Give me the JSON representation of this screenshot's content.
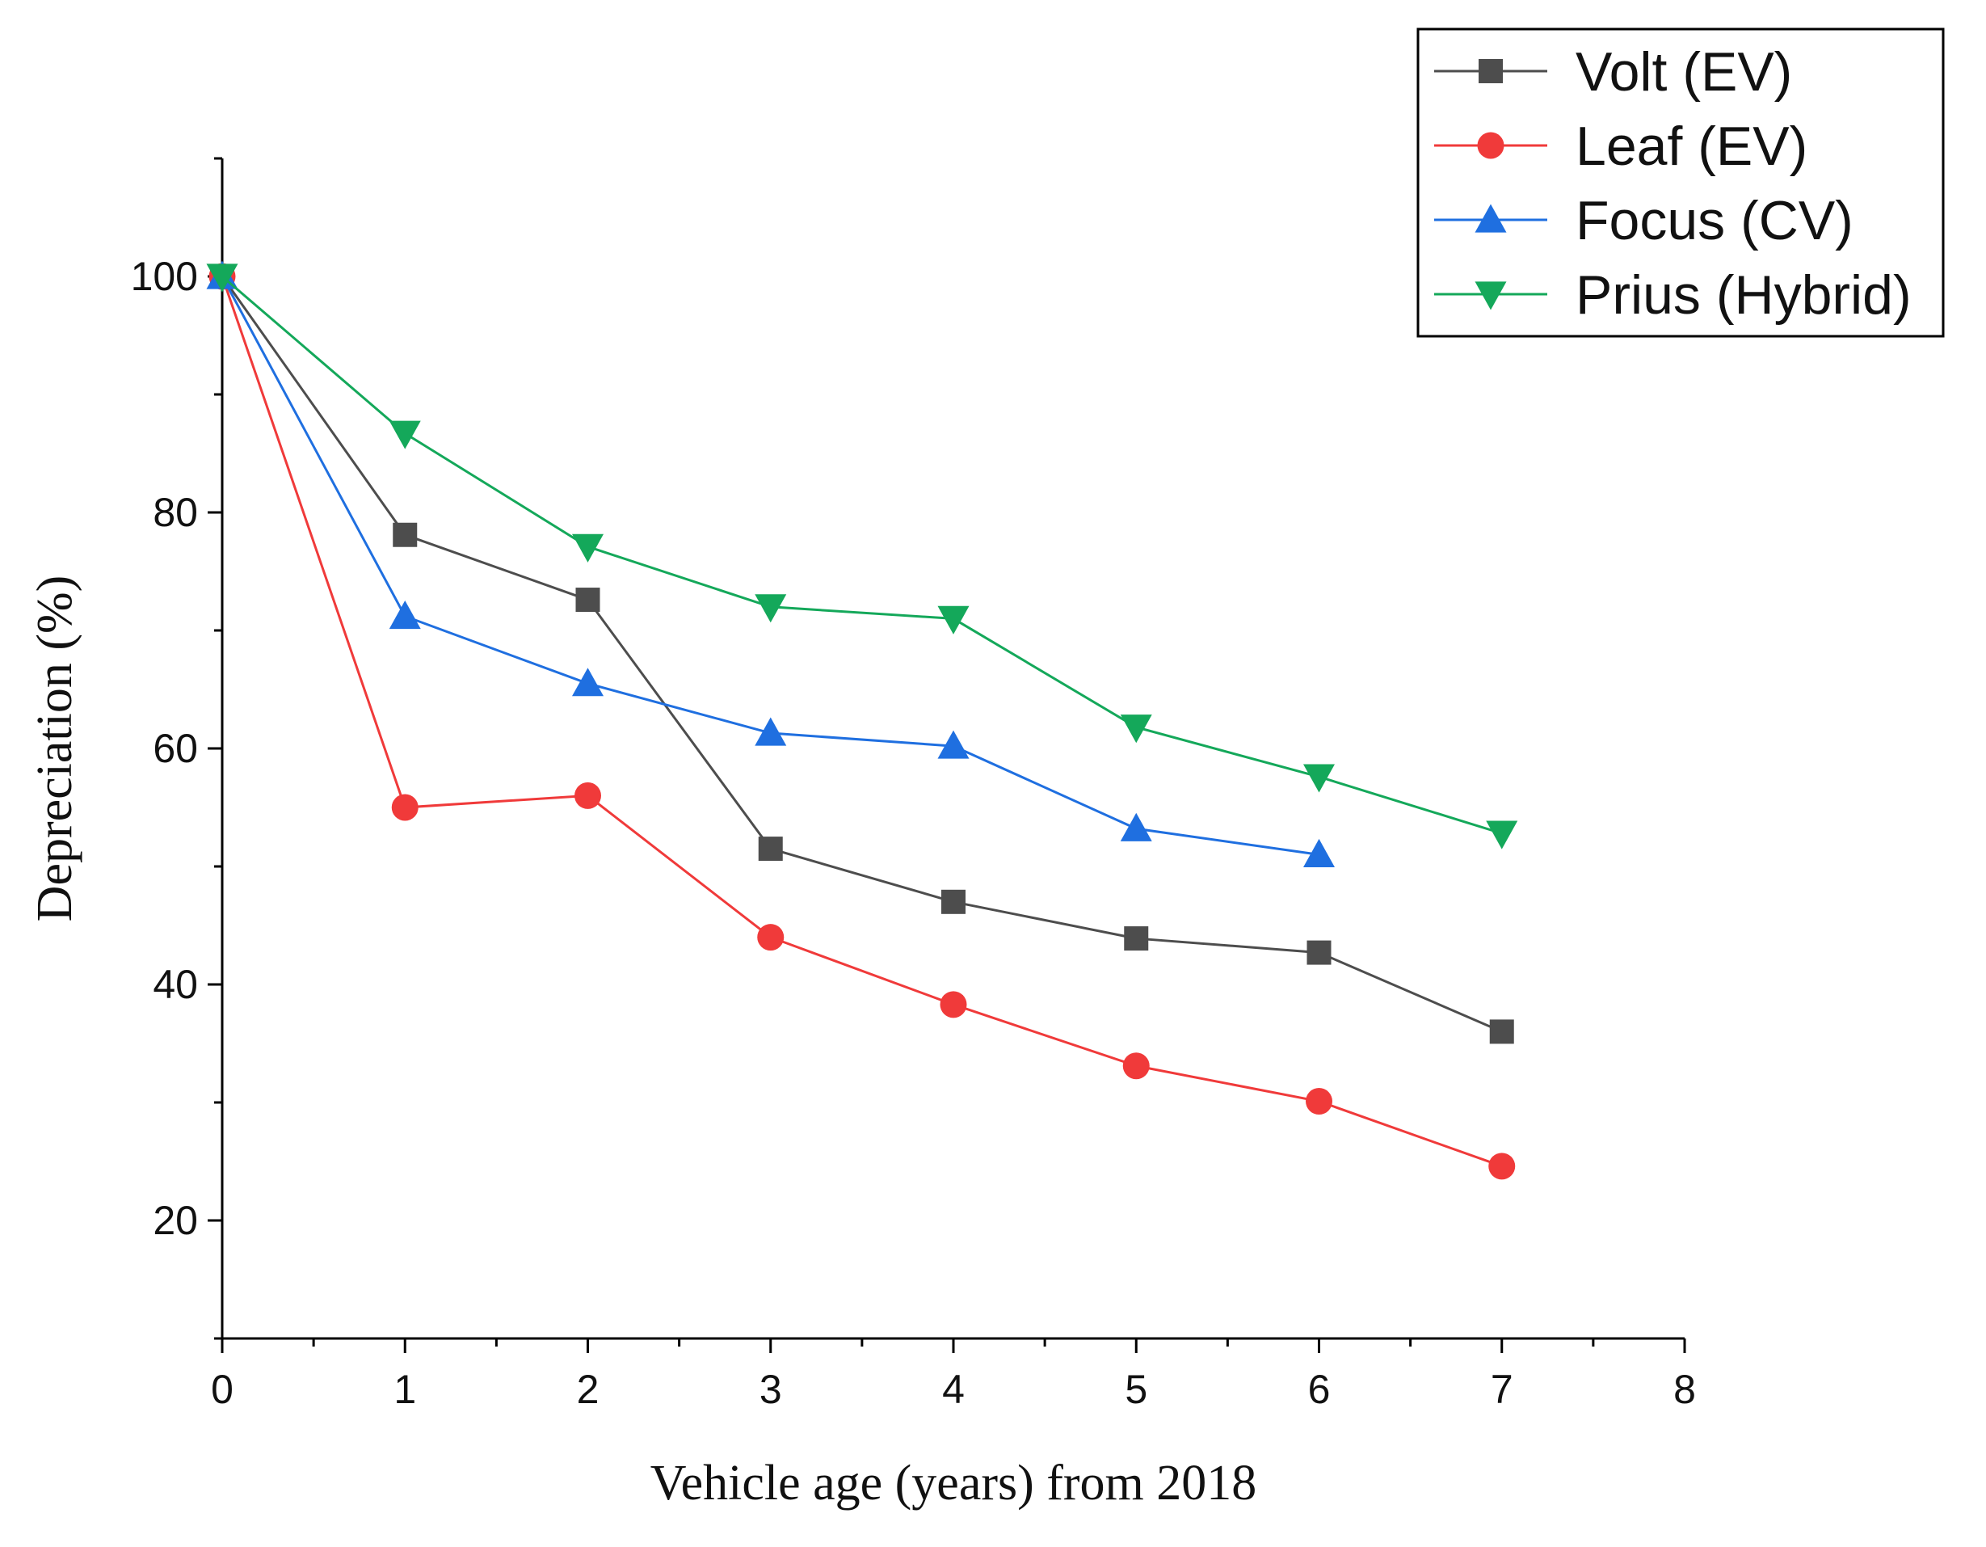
{
  "chart_data": {
    "type": "line",
    "xlabel": "Vehicle age (years) from 2018",
    "ylabel": "Depreciation (%)",
    "xlim": [
      0,
      8
    ],
    "ylim": [
      10,
      110
    ],
    "xticks": [
      0,
      1,
      2,
      3,
      4,
      5,
      6,
      7,
      8
    ],
    "yticks": [
      20,
      40,
      60,
      80,
      100
    ],
    "grid": false,
    "legend_position": "top-right",
    "series": [
      {
        "name": "Volt (EV)",
        "color": "#4d4d4d",
        "marker": "square",
        "x": [
          0,
          1,
          2,
          3,
          4,
          5,
          6,
          7
        ],
        "values": [
          100,
          78.1,
          72.6,
          51.5,
          47.0,
          43.9,
          42.7,
          36.0
        ]
      },
      {
        "name": "Leaf (EV)",
        "color": "#f03a3a",
        "marker": "circle",
        "x": [
          0,
          1,
          2,
          3,
          4,
          5,
          6,
          7
        ],
        "values": [
          100,
          55.0,
          56.0,
          44.0,
          38.3,
          33.1,
          30.1,
          24.6
        ]
      },
      {
        "name": "Focus (CV)",
        "color": "#1f6fe0",
        "marker": "triangle-up",
        "x": [
          0,
          1,
          2,
          3,
          4,
          5,
          6
        ],
        "values": [
          100,
          71.2,
          65.5,
          61.3,
          60.2,
          53.2,
          51.0
        ]
      },
      {
        "name": "Prius (Hybrid)",
        "color": "#14a85a",
        "marker": "triangle-down",
        "x": [
          0,
          1,
          2,
          3,
          4,
          5,
          6,
          7
        ],
        "values": [
          100,
          86.7,
          77.1,
          72.0,
          71.0,
          61.8,
          57.6,
          52.8
        ]
      }
    ]
  }
}
